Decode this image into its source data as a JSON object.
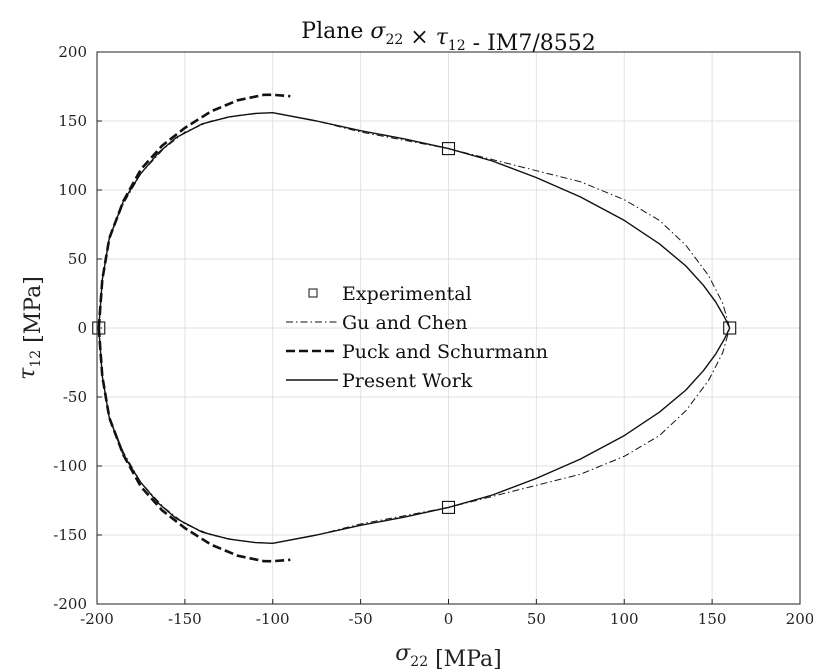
{
  "chart_data": {
    "type": "line",
    "title": "Plane σ22 × τ12 - IM7/8552",
    "xlabel": "σ22 [MPa]",
    "ylabel": "τ12 [MPa]",
    "xlim": [
      -200,
      200
    ],
    "ylim": [
      -200,
      200
    ],
    "xticks": [
      -200,
      -150,
      -100,
      -50,
      0,
      50,
      100,
      150,
      200
    ],
    "yticks": [
      -200,
      -150,
      -100,
      -50,
      0,
      50,
      100,
      150,
      200
    ],
    "grid": true,
    "legend_position": "center-left",
    "legend": [
      "Experimental",
      "Gu and Chen",
      "Puck and Schurmann",
      "Present Work"
    ],
    "series": [
      {
        "name": "Experimental",
        "style": "square-markers",
        "x": [
          -199,
          0,
          160,
          0
        ],
        "y": [
          0,
          130,
          0,
          -130
        ]
      },
      {
        "name": "Gu and Chen",
        "style": "dash-dot",
        "x": [
          -199,
          -197,
          -193,
          -185,
          -175,
          -162,
          -150,
          -135,
          -120,
          -108,
          -100,
          -75,
          -50,
          -25,
          0,
          25,
          50,
          75,
          100,
          120,
          135,
          148,
          156,
          160,
          156,
          148,
          135,
          120,
          100,
          75,
          50,
          25,
          0,
          -25,
          -50,
          -75,
          -100,
          -108,
          -120,
          -135,
          -150,
          -162,
          -175,
          -185,
          -193,
          -197,
          -199
        ],
        "y": [
          0,
          35,
          65,
          90,
          112,
          130,
          142,
          150,
          154,
          155.5,
          156,
          150,
          142,
          136,
          130,
          122,
          114,
          106,
          93,
          78,
          60,
          38,
          18,
          0,
          -18,
          -38,
          -60,
          -78,
          -93,
          -106,
          -114,
          -122,
          -130,
          -136,
          -142,
          -150,
          -156,
          -155.5,
          -154,
          -150,
          -142,
          -130,
          -112,
          -90,
          -65,
          -35,
          0
        ]
      },
      {
        "name": "Puck and Schurmann",
        "style": "dashed",
        "x": [
          -199,
          -197,
          -193,
          -185,
          -175,
          -163,
          -150,
          -135,
          -120,
          -105,
          -100,
          -90
        ],
        "y": [
          0,
          35,
          65,
          92,
          115,
          132,
          145,
          157,
          165,
          169,
          169,
          168
        ]
      },
      {
        "name": "Puck and Schurmann",
        "style": "dashed",
        "x": [
          -199,
          -197,
          -193,
          -185,
          -175,
          -163,
          -150,
          -135,
          -120,
          -105,
          -100,
          -90
        ],
        "y": [
          0,
          -35,
          -65,
          -92,
          -115,
          -132,
          -145,
          -157,
          -165,
          -169,
          -169,
          -168
        ]
      },
      {
        "name": "Present Work",
        "style": "solid",
        "x": [
          -199,
          -197,
          -193,
          -185,
          -175,
          -165,
          -155,
          -140,
          -125,
          -110,
          -100,
          -75,
          -50,
          -25,
          0,
          25,
          50,
          75,
          100,
          120,
          135,
          145,
          152,
          157,
          160,
          157,
          152,
          145,
          135,
          120,
          100,
          75,
          50,
          25,
          0,
          -25,
          -50,
          -75,
          -100,
          -110,
          -125,
          -140,
          -155,
          -165,
          -175,
          -185,
          -193,
          -197,
          -199
        ],
        "y": [
          0,
          35,
          65,
          92,
          112,
          127,
          138,
          148,
          153,
          155.5,
          156,
          150,
          143,
          137,
          130,
          121,
          109,
          95,
          78,
          61,
          45,
          31,
          19,
          8,
          0,
          -8,
          -19,
          -31,
          -45,
          -61,
          -78,
          -95,
          -109,
          -121,
          -130,
          -137,
          -143,
          -150,
          -156,
          -155.5,
          -153,
          -148,
          -138,
          -127,
          -112,
          -92,
          -65,
          -35,
          0
        ]
      }
    ]
  }
}
